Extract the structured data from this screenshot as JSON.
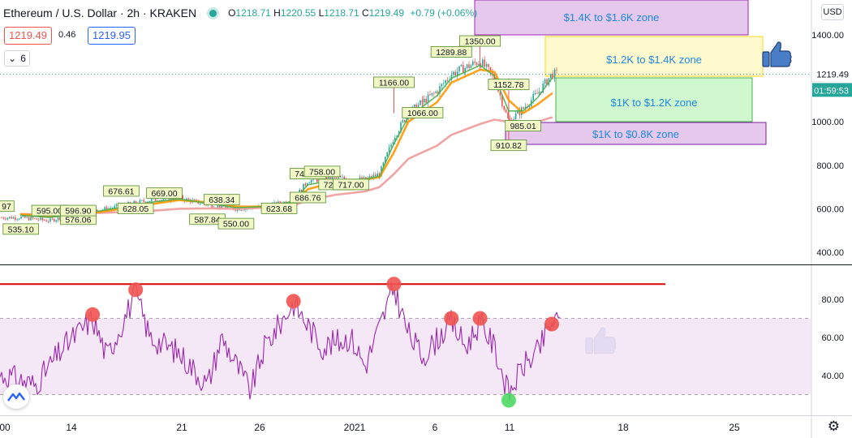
{
  "header": {
    "title": "Ethereum / U.S. Dollar · 2h · KRAKEN",
    "ohlc": {
      "o_label": "O",
      "o": "1218.71",
      "h_label": "H",
      "h": "1220.55",
      "l_label": "L",
      "l": "1218.71",
      "c_label": "C",
      "c": "1219.49",
      "change": "+0.79 (+0.06%)"
    },
    "bid": "1219.49",
    "spread": "0.46",
    "ask": "1219.95",
    "visible_indicators": "6",
    "currency": "USD"
  },
  "colors": {
    "up": "#26a69a",
    "down": "#ef5350",
    "ma_fast": "#4caf50",
    "ma_mid": "#ff9800",
    "ma_slow": "#ef9a9a",
    "rsi": "#9c27b0",
    "rsi_band": "#f3e5f5",
    "resistance": "#d50000",
    "zone_purple": "#e1bee7",
    "zone_yellow": "#fff9c4",
    "zone_green": "#c8f7c5",
    "zone_text": "#1e88e5",
    "price_line": "#26a69a",
    "thumbs_up": "#4a7fc7"
  },
  "chart_data": [
    {
      "type": "candlestick",
      "title": "Ethereum / U.S. Dollar · 2h · KRAKEN",
      "xaxis_ticks": [
        "00",
        "14",
        "21",
        "26",
        "2021",
        "6",
        "11",
        "18",
        "25"
      ],
      "yaxis_ticks": [
        400,
        600,
        800,
        1000,
        1200,
        1400
      ],
      "ylim": [
        350,
        1470
      ],
      "current_price": "1219.49",
      "countdown": "01:59:53",
      "series": [
        {
          "name": "price",
          "x": [
            "Dec 8",
            "Dec 10",
            "Dec 12",
            "Dec 14",
            "Dec 17",
            "Dec 19",
            "Dec 21",
            "Dec 23",
            "Dec 25",
            "Dec 27",
            "Dec 28",
            "Dec 30",
            "Jan 1",
            "Jan 2",
            "Jan 3",
            "Jan 4",
            "Jan 6",
            "Jan 7",
            "Jan 9",
            "Jan 10",
            "Jan 11",
            "Jan 12",
            "Jan 13",
            "Jan 14"
          ],
          "y": [
            560,
            545,
            580,
            600,
            640,
            650,
            620,
            600,
            610,
            640,
            730,
            740,
            735,
            760,
            930,
            1040,
            1140,
            1220,
            1280,
            1200,
            1000,
            1060,
            1130,
            1219
          ]
        },
        {
          "name": "ma_fast",
          "y": [
            570,
            560,
            575,
            595,
            630,
            645,
            625,
            605,
            610,
            635,
            710,
            735,
            735,
            750,
            900,
            1020,
            1120,
            1200,
            1260,
            1210,
            1050,
            1050,
            1110,
            1200
          ]
        },
        {
          "name": "ma_mid",
          "y": [
            575,
            565,
            575,
            590,
            620,
            640,
            630,
            610,
            610,
            630,
            690,
            725,
            735,
            745,
            860,
            1000,
            1090,
            1180,
            1240,
            1230,
            1100,
            1040,
            1080,
            1130
          ]
        },
        {
          "name": "ma_slow",
          "y": [
            575,
            575,
            578,
            582,
            590,
            600,
            602,
            600,
            605,
            615,
            640,
            665,
            680,
            700,
            760,
            830,
            890,
            940,
            990,
            1010,
            1000,
            990,
            1000,
            1020
          ]
        }
      ],
      "annotations": [
        {
          "x": "Dec 7",
          "y": 610,
          "label": "97"
        },
        {
          "x": "Dec 8",
          "y": 505,
          "label": "535.10"
        },
        {
          "x": "Dec 10",
          "y": 590,
          "label": "595.00"
        },
        {
          "x": "Dec 12",
          "y": 550,
          "label": "576.06"
        },
        {
          "x": "Dec 12",
          "y": 590,
          "label": "596.90"
        },
        {
          "x": "Dec 15",
          "y": 680,
          "label": "676.61"
        },
        {
          "x": "Dec 16",
          "y": 600,
          "label": "628.05"
        },
        {
          "x": "Dec 18",
          "y": 670,
          "label": "669.00"
        },
        {
          "x": "Dec 21",
          "y": 550,
          "label": "587.84"
        },
        {
          "x": "Dec 22",
          "y": 640,
          "label": "638.34"
        },
        {
          "x": "Dec 23",
          "y": 530,
          "label": "550.00"
        },
        {
          "x": "Dec 26",
          "y": 600,
          "label": "623.68"
        },
        {
          "x": "Dec 28",
          "y": 760,
          "label": "746.71"
        },
        {
          "x": "Dec 28",
          "y": 650,
          "label": "686.76"
        },
        {
          "x": "Dec 29",
          "y": 770,
          "label": "758.00"
        },
        {
          "x": "Dec 30",
          "y": 710,
          "label": "721.00"
        },
        {
          "x": "Dec 31",
          "y": 710,
          "label": "717.00"
        },
        {
          "x": "Jan 3",
          "y": 1180,
          "label": "1166.00"
        },
        {
          "x": "Jan 5",
          "y": 1040,
          "label": "1066.00"
        },
        {
          "x": "Jan 7",
          "y": 1320,
          "label": "1289.88"
        },
        {
          "x": "Jan 9",
          "y": 1370,
          "label": "1350.00"
        },
        {
          "x": "Jan 11",
          "y": 1170,
          "label": "1152.78"
        },
        {
          "x": "Jan 12",
          "y": 980,
          "label": "985.01"
        },
        {
          "x": "Jan 11",
          "y": 890,
          "label": "910.82"
        }
      ],
      "zones": [
        {
          "label": "$1.4K to $1.6K zone",
          "from": 1400,
          "to": 1600
        },
        {
          "label": "$1.2K to $1.4K zone",
          "from": 1200,
          "to": 1400
        },
        {
          "label": "$1K to $1.2K zone",
          "from": 1000,
          "to": 1200
        },
        {
          "label": "$1K to $0.8K zone",
          "from": 900,
          "to": 1000
        }
      ]
    },
    {
      "type": "line",
      "title": "",
      "yaxis_ticks": [
        40,
        60,
        80
      ],
      "ylim": [
        22,
        97
      ],
      "band": [
        30,
        70
      ],
      "resistance": 88,
      "series": [
        {
          "name": "rsi",
          "x": [
            "Dec 7",
            "Dec 9",
            "Dec 11",
            "Dec 13",
            "Dec 14",
            "Dec 16",
            "Dec 17",
            "Dec 19",
            "Dec 21",
            "Dec 22",
            "Dec 24",
            "Dec 25",
            "Dec 27",
            "Dec 29",
            "Dec 31",
            "Jan 1",
            "Jan 3",
            "Jan 4",
            "Jan 5",
            "Jan 7",
            "Jan 8",
            "Jan 9",
            "Jan 10",
            "Jan 11",
            "Jan 12",
            "Jan 13",
            "Jan 14"
          ],
          "y": [
            40,
            35,
            55,
            70,
            50,
            83,
            60,
            52,
            35,
            60,
            32,
            55,
            78,
            55,
            60,
            45,
            86,
            62,
            50,
            68,
            55,
            68,
            55,
            30,
            45,
            52,
            68
          ]
        }
      ],
      "highlights": [
        {
          "x": "Dec 13",
          "y": 72,
          "color": "#ef5350"
        },
        {
          "x": "Dec 16",
          "y": 85,
          "color": "#ef5350"
        },
        {
          "x": "Dec 27",
          "y": 79,
          "color": "#ef5350"
        },
        {
          "x": "Jan 3",
          "y": 88,
          "color": "#ef5350"
        },
        {
          "x": "Jan 7",
          "y": 70,
          "color": "#ef5350"
        },
        {
          "x": "Jan 9",
          "y": 70,
          "color": "#ef5350"
        },
        {
          "x": "Jan 11",
          "y": 27,
          "color": "#4cd964"
        },
        {
          "x": "Jan 14",
          "y": 67,
          "color": "#ef5350"
        }
      ]
    }
  ]
}
